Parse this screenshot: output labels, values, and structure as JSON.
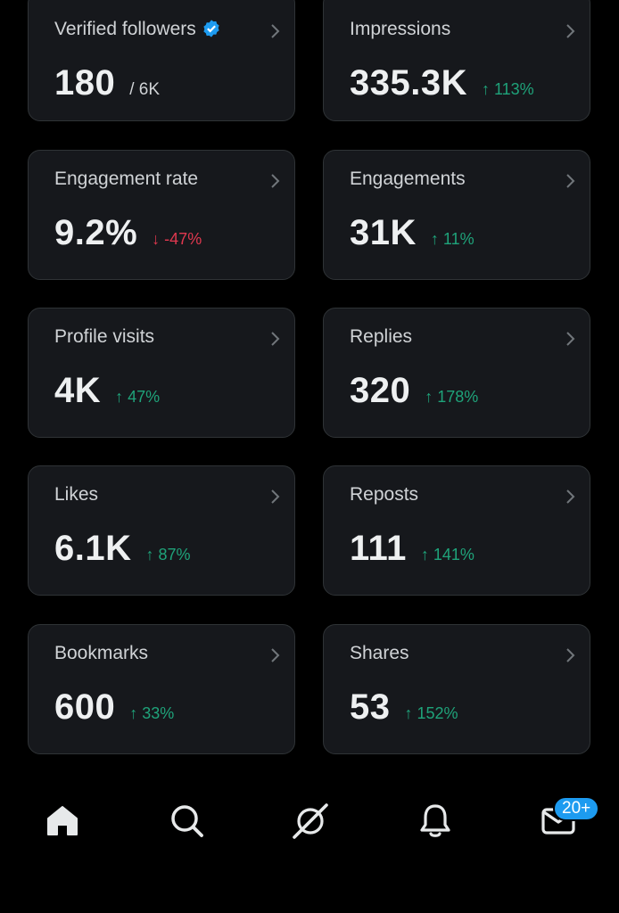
{
  "stats": [
    {
      "label": "Verified followers",
      "value": "180",
      "sub": "/ 6K",
      "verified": true
    },
    {
      "label": "Impressions",
      "value": "335.3K",
      "change": "↑ 113%",
      "direction": "up"
    },
    {
      "label": "Engagement rate",
      "value": "9.2%",
      "change": "↓ -47%",
      "direction": "down"
    },
    {
      "label": "Engagements",
      "value": "31K",
      "change": "↑ 11%",
      "direction": "up"
    },
    {
      "label": "Profile visits",
      "value": "4K",
      "change": "↑ 47%",
      "direction": "up"
    },
    {
      "label": "Replies",
      "value": "320",
      "change": "↑ 178%",
      "direction": "up"
    },
    {
      "label": "Likes",
      "value": "6.1K",
      "change": "↑ 87%",
      "direction": "up"
    },
    {
      "label": "Reposts",
      "value": "111",
      "change": "↑ 141%",
      "direction": "up"
    },
    {
      "label": "Bookmarks",
      "value": "600",
      "change": "↑ 33%",
      "direction": "up"
    },
    {
      "label": "Shares",
      "value": "53",
      "change": "↑ 152%",
      "direction": "up"
    }
  ],
  "nav": {
    "items": [
      {
        "icon": "home-icon"
      },
      {
        "icon": "search-icon"
      },
      {
        "icon": "grok-icon"
      },
      {
        "icon": "bell-icon"
      },
      {
        "icon": "mail-icon"
      }
    ],
    "messages_badge": "20+"
  },
  "colors": {
    "up": "#1fa37a",
    "down": "#e0384f",
    "accent": "#1d9bf0"
  }
}
